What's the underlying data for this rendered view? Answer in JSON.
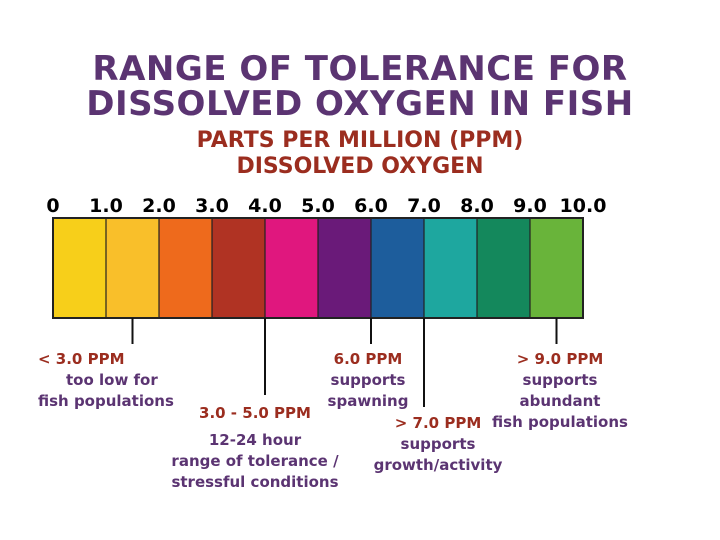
{
  "title": {
    "line1": "RANGE OF TOLERANCE FOR",
    "line2": "DISSOLVED OXYGEN IN FISH"
  },
  "subtitle": {
    "line1": "PARTS PER MILLION (PPM)",
    "line2": "DISSOLVED OXYGEN"
  },
  "chart_data": {
    "type": "bar",
    "title": "RANGE OF TOLERANCE FOR DISSOLVED OXYGEN IN FISH",
    "xlabel": "PARTS PER MILLION (PPM) DISSOLVED OXYGEN",
    "ylabel": "",
    "xlim": [
      0,
      10
    ],
    "tick_labels": [
      "0",
      "1.0",
      "2.0",
      "3.0",
      "4.0",
      "5.0",
      "6.0",
      "7.0",
      "8.0",
      "9.0",
      "10.0"
    ],
    "segments": [
      {
        "from": 0,
        "to": 1,
        "color": "#f7cf1a"
      },
      {
        "from": 1,
        "to": 2,
        "color": "#f9bf2a"
      },
      {
        "from": 2,
        "to": 3,
        "color": "#ee6a1c"
      },
      {
        "from": 3,
        "to": 4,
        "color": "#b03323"
      },
      {
        "from": 4,
        "to": 5,
        "color": "#e0177e"
      },
      {
        "from": 5,
        "to": 6,
        "color": "#6a1a79"
      },
      {
        "from": 6,
        "to": 7,
        "color": "#1d5d9c"
      },
      {
        "from": 7,
        "to": 8,
        "color": "#1ea79f"
      },
      {
        "from": 8,
        "to": 9,
        "color": "#14885c"
      },
      {
        "from": 9,
        "to": 10,
        "color": "#69b43a"
      }
    ],
    "annotations": [
      {
        "value": 1.5,
        "head": "< 3.0 PPM",
        "lines": [
          "too low for",
          "fish populations"
        ]
      },
      {
        "value": 4.0,
        "head": "3.0 - 5.0 PPM",
        "lines": [
          "12-24 hour",
          "range of tolerance /",
          "stressful conditions"
        ]
      },
      {
        "value": 6.0,
        "head": "6.0 PPM",
        "lines": [
          "supports",
          "spawning"
        ]
      },
      {
        "value": 7.0,
        "head": "> 7.0 PPM",
        "lines": [
          "supports",
          "growth/activity"
        ]
      },
      {
        "value": 9.5,
        "head": "> 9.0 PPM",
        "lines": [
          "supports",
          "abundant",
          "fish populations"
        ]
      }
    ]
  }
}
